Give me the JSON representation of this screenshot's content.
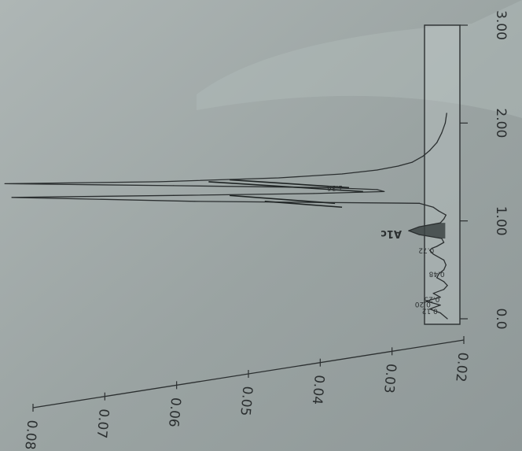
{
  "chart_data": {
    "type": "line",
    "title": "",
    "xlabel": "",
    "ylabel": "",
    "xlim": [
      0,
      3.0
    ],
    "ylim": [
      0.02,
      0.08
    ],
    "x_ticks": [
      {
        "value": 0,
        "label": "0.0"
      },
      {
        "value": 1.0,
        "label": "1.00"
      },
      {
        "value": 2.0,
        "label": "2.00"
      },
      {
        "value": 3.0,
        "label": "3.00"
      }
    ],
    "y_ticks": [
      {
        "value": 0.02,
        "label": "0.02"
      },
      {
        "value": 0.03,
        "label": "0.03"
      },
      {
        "value": 0.04,
        "label": "0.04"
      },
      {
        "value": 0.05,
        "label": "0.05"
      },
      {
        "value": 0.06,
        "label": "0.06"
      },
      {
        "value": 0.07,
        "label": "0.07"
      },
      {
        "value": 0.08,
        "label": "0.08"
      }
    ],
    "grid": false,
    "series": [
      {
        "x": [
          0.0,
          0.06,
          0.1,
          0.14,
          0.18,
          0.22,
          0.26,
          0.3,
          0.34,
          0.38,
          0.42,
          0.46,
          0.5,
          0.55,
          0.6,
          0.66,
          0.7,
          0.72,
          0.74,
          0.78,
          0.82,
          0.86,
          0.9,
          0.94,
          0.98,
          1.02,
          1.06,
          1.1,
          1.14,
          1.18,
          1.2,
          1.24,
          1.26,
          1.28,
          1.3,
          1.32,
          1.34,
          1.36,
          1.38,
          1.4,
          1.44,
          1.48,
          1.52,
          1.56,
          1.6,
          1.66,
          1.72,
          1.8,
          1.9,
          2.0,
          2.1
        ],
        "values": [
          0.021,
          0.022,
          0.0235,
          0.022,
          0.024,
          0.022,
          0.023,
          0.0215,
          0.021,
          0.0215,
          0.0225,
          0.0222,
          0.0215,
          0.0212,
          0.0215,
          0.023,
          0.0235,
          0.0232,
          0.0225,
          0.0215,
          0.0218,
          0.025,
          0.0265,
          0.025,
          0.022,
          0.0215,
          0.0212,
          0.0222,
          0.023,
          0.025,
          0.057,
          0.083,
          0.06,
          0.04,
          0.03,
          0.031,
          0.038,
          0.06,
          0.084,
          0.062,
          0.045,
          0.036,
          0.031,
          0.028,
          0.026,
          0.0245,
          0.0235,
          0.0225,
          0.0218,
          0.0213,
          0.0211
        ]
      }
    ],
    "shaded_peak": {
      "x_start": 0.82,
      "x_end": 0.98
    },
    "annotations": [
      {
        "text": "0.12",
        "x": 0.1,
        "y": 0.0235
      },
      {
        "text": "0.20",
        "x": 0.17,
        "y": 0.0245
      },
      {
        "text": "0.25",
        "x": 0.22,
        "y": 0.0232
      },
      {
        "text": "0.48",
        "x": 0.48,
        "y": 0.0225
      },
      {
        "text": "0.72",
        "x": 0.72,
        "y": 0.024
      },
      {
        "text": "A1c",
        "x": 0.9,
        "y": 0.029
      },
      {
        "text": "1.36",
        "x": 1.36,
        "y": 0.037
      }
    ]
  }
}
